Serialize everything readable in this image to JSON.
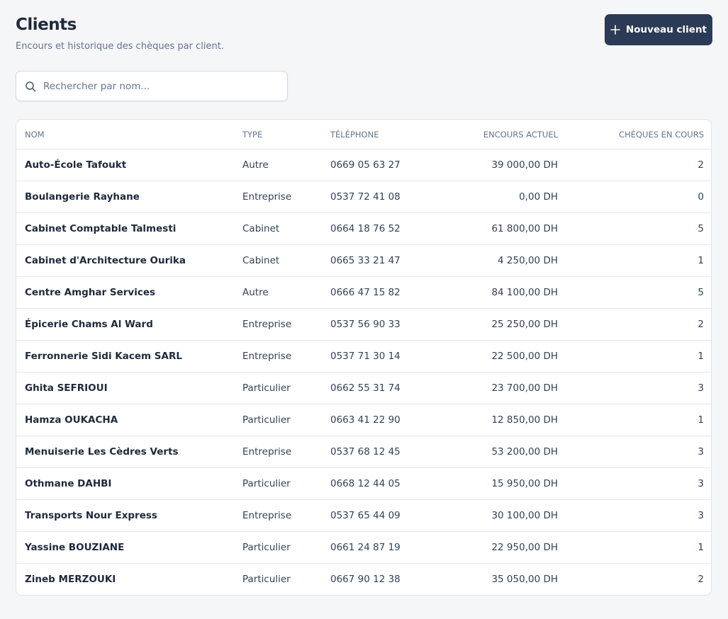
{
  "header": {
    "title": "Clients",
    "subtitle": "Encours et historique des chèques par client."
  },
  "button": {
    "label": "Nouveau client"
  },
  "search": {
    "placeholder": "Rechercher par nom..."
  },
  "table": {
    "columns": [
      "NOM",
      "TYPE",
      "TÉLÉPHONE",
      "ENCOURS ACTUEL",
      "CHÈQUES EN COURS"
    ],
    "rows": [
      [
        "Auto-École Tafoukt",
        "Autre",
        "0669 05 63 27",
        "39 000,00 DH",
        2
      ],
      [
        "Boulangerie Rayhane",
        "Entreprise",
        "0537 72 41 08",
        "0,00 DH",
        0
      ],
      [
        "Cabinet Comptable Talmesti",
        "Cabinet",
        "0664 18 76 52",
        "61 800,00 DH",
        5
      ],
      [
        "Cabinet d'Architecture Ourika",
        "Cabinet",
        "0665 33 21 47",
        "4 250,00 DH",
        1
      ],
      [
        "Centre Amghar Services",
        "Autre",
        "0666 47 15 82",
        "84 100,00 DH",
        5
      ],
      [
        "Épicerie Chams Al Ward",
        "Entreprise",
        "0537 56 90 33",
        "25 250,00 DH",
        2
      ],
      [
        "Ferronnerie Sidi Kacem SARL",
        "Entreprise",
        "0537 71 30 14",
        "22 500,00 DH",
        1
      ],
      [
        "Ghita SEFRIOUI",
        "Particulier",
        "0662 55 31 74",
        "23 700,00 DH",
        3
      ],
      [
        "Hamza OUKACHA",
        "Particulier",
        "0663 41 22 90",
        "12 850,00 DH",
        1
      ],
      [
        "Menuiserie Les Cèdres Verts",
        "Entreprise",
        "0537 68 12 45",
        "53 200,00 DH",
        3
      ],
      [
        "Othmane DAHBI",
        "Particulier",
        "0668 12 44 05",
        "15 950,00 DH",
        3
      ],
      [
        "Transports Nour Express",
        "Entreprise",
        "0537 65 44 09",
        "30 100,00 DH",
        3
      ],
      [
        "Yassine BOUZIANE",
        "Particulier",
        "0661 24 87 19",
        "22 950,00 DH",
        1
      ],
      [
        "Zineb MERZOUKI",
        "Particulier",
        "0667 90 12 38",
        "35 050,00 DH",
        2
      ]
    ]
  }
}
